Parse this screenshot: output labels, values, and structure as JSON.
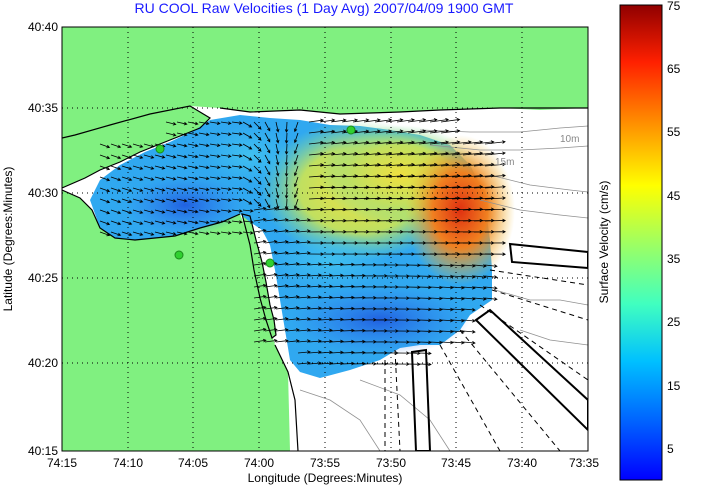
{
  "title": "RU COOL Raw Velocities (1 Day Avg) 2007/04/09 1900 GMT",
  "map": {
    "xlabel": "Longitude (Degrees:Minutes)",
    "ylabel": "Latitude (Degrees:Minutes)",
    "x_ticks": [
      "74:15",
      "74:10",
      "74:05",
      "74:00",
      "73:55",
      "73:50",
      "73:45",
      "73:40",
      "73:35"
    ],
    "y_ticks": [
      "40:40",
      "40:35",
      "40:30",
      "40:25",
      "40:20",
      "40:15"
    ],
    "depth_labels": [
      "10m",
      "15m"
    ],
    "colors": {
      "land": "#80f080",
      "water": "#ffffff",
      "coast": "#000000",
      "contour": "#909090",
      "station": "#30d030"
    }
  },
  "colorbar": {
    "label": "Surface Velocity (cm/s)",
    "ticks": [
      "75",
      "65",
      "55",
      "45",
      "35",
      "25",
      "15",
      "5"
    ],
    "min": 0,
    "max": 75,
    "colormap": "jet"
  }
}
